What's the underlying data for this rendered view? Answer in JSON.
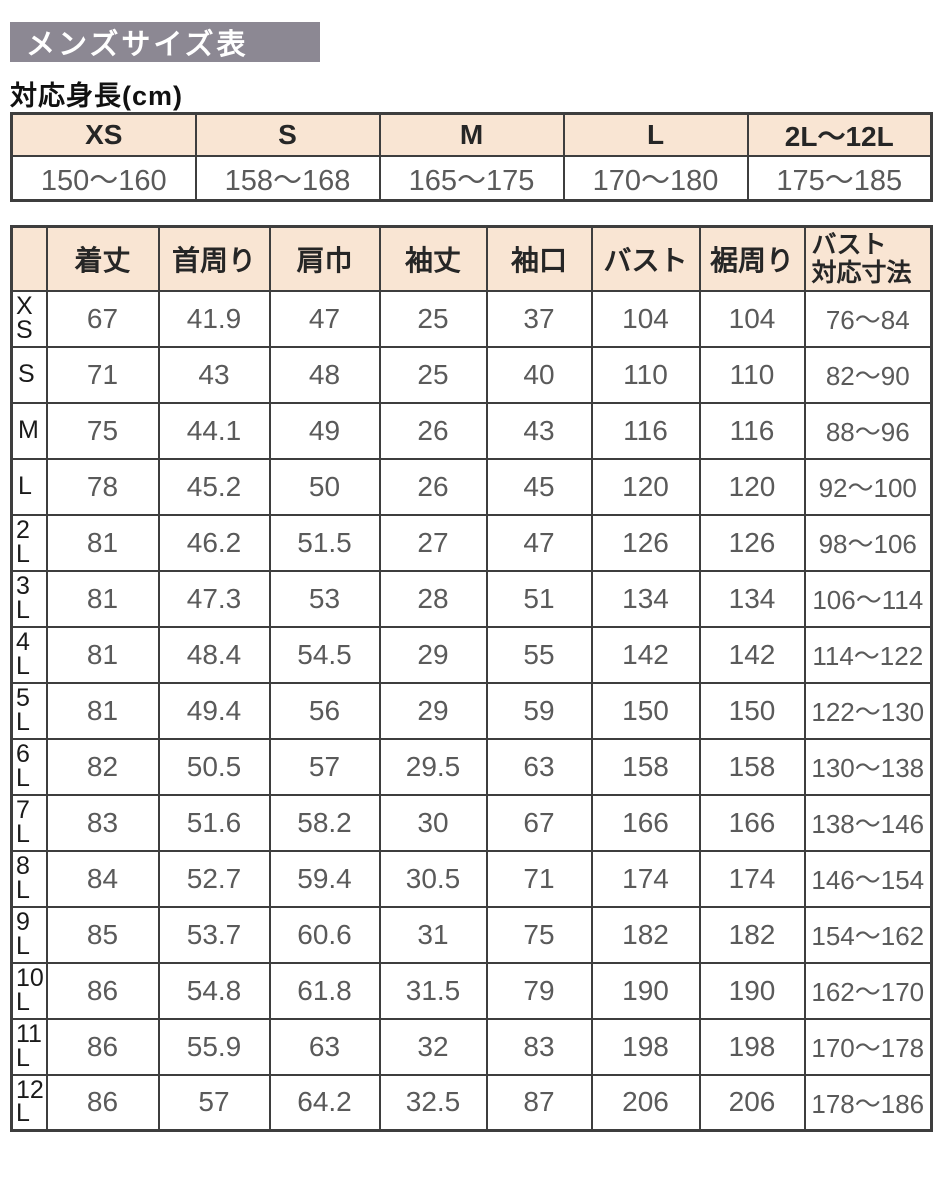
{
  "page": {
    "title": "メンズサイズ表",
    "height_label": "対応身長(cm)"
  },
  "colors": {
    "banner_bg": "#8C8893",
    "header_bg": "#F9E5D3",
    "border_color": "#3E3E3E",
    "text_dark": "#262626",
    "text_gray": "#5A5A5A"
  },
  "height_table": {
    "columns": [
      "XS",
      "S",
      "M",
      "L",
      "2L～12L"
    ],
    "values": [
      "150～160",
      "158～168",
      "165～175",
      "170～180",
      "175～185"
    ]
  },
  "size_table": {
    "columns": [
      "着丈",
      "首周り",
      "肩巾",
      "袖丈",
      "袖口",
      "バスト",
      "裾周り",
      "バスト\n対応寸法"
    ],
    "rows": [
      {
        "label": "X\nS",
        "values": [
          "67",
          "41.9",
          "47",
          "25",
          "37",
          "104",
          "104",
          "76～84"
        ]
      },
      {
        "label": "S",
        "values": [
          "71",
          "43",
          "48",
          "25",
          "40",
          "110",
          "110",
          "82～90"
        ]
      },
      {
        "label": "M",
        "values": [
          "75",
          "44.1",
          "49",
          "26",
          "43",
          "116",
          "116",
          "88～96"
        ]
      },
      {
        "label": "L",
        "values": [
          "78",
          "45.2",
          "50",
          "26",
          "45",
          "120",
          "120",
          "92～100"
        ]
      },
      {
        "label": "2\nL",
        "values": [
          "81",
          "46.2",
          "51.5",
          "27",
          "47",
          "126",
          "126",
          "98～106"
        ]
      },
      {
        "label": "3\nL",
        "values": [
          "81",
          "47.3",
          "53",
          "28",
          "51",
          "134",
          "134",
          "106～114"
        ]
      },
      {
        "label": "4\nL",
        "values": [
          "81",
          "48.4",
          "54.5",
          "29",
          "55",
          "142",
          "142",
          "114～122"
        ]
      },
      {
        "label": "5\nL",
        "values": [
          "81",
          "49.4",
          "56",
          "29",
          "59",
          "150",
          "150",
          "122～130"
        ]
      },
      {
        "label": "6\nL",
        "values": [
          "82",
          "50.5",
          "57",
          "29.5",
          "63",
          "158",
          "158",
          "130～138"
        ]
      },
      {
        "label": "7\nL",
        "values": [
          "83",
          "51.6",
          "58.2",
          "30",
          "67",
          "166",
          "166",
          "138～146"
        ]
      },
      {
        "label": "8\nL",
        "values": [
          "84",
          "52.7",
          "59.4",
          "30.5",
          "71",
          "174",
          "174",
          "146～154"
        ]
      },
      {
        "label": "9\nL",
        "values": [
          "85",
          "53.7",
          "60.6",
          "31",
          "75",
          "182",
          "182",
          "154～162"
        ]
      },
      {
        "label": "10\nL",
        "values": [
          "86",
          "54.8",
          "61.8",
          "31.5",
          "79",
          "190",
          "190",
          "162～170"
        ]
      },
      {
        "label": "11\nL",
        "values": [
          "86",
          "55.9",
          "63",
          "32",
          "83",
          "198",
          "198",
          "170～178"
        ]
      },
      {
        "label": "12\nL",
        "values": [
          "86",
          "57",
          "64.2",
          "32.5",
          "87",
          "206",
          "206",
          "178～186"
        ]
      }
    ]
  }
}
